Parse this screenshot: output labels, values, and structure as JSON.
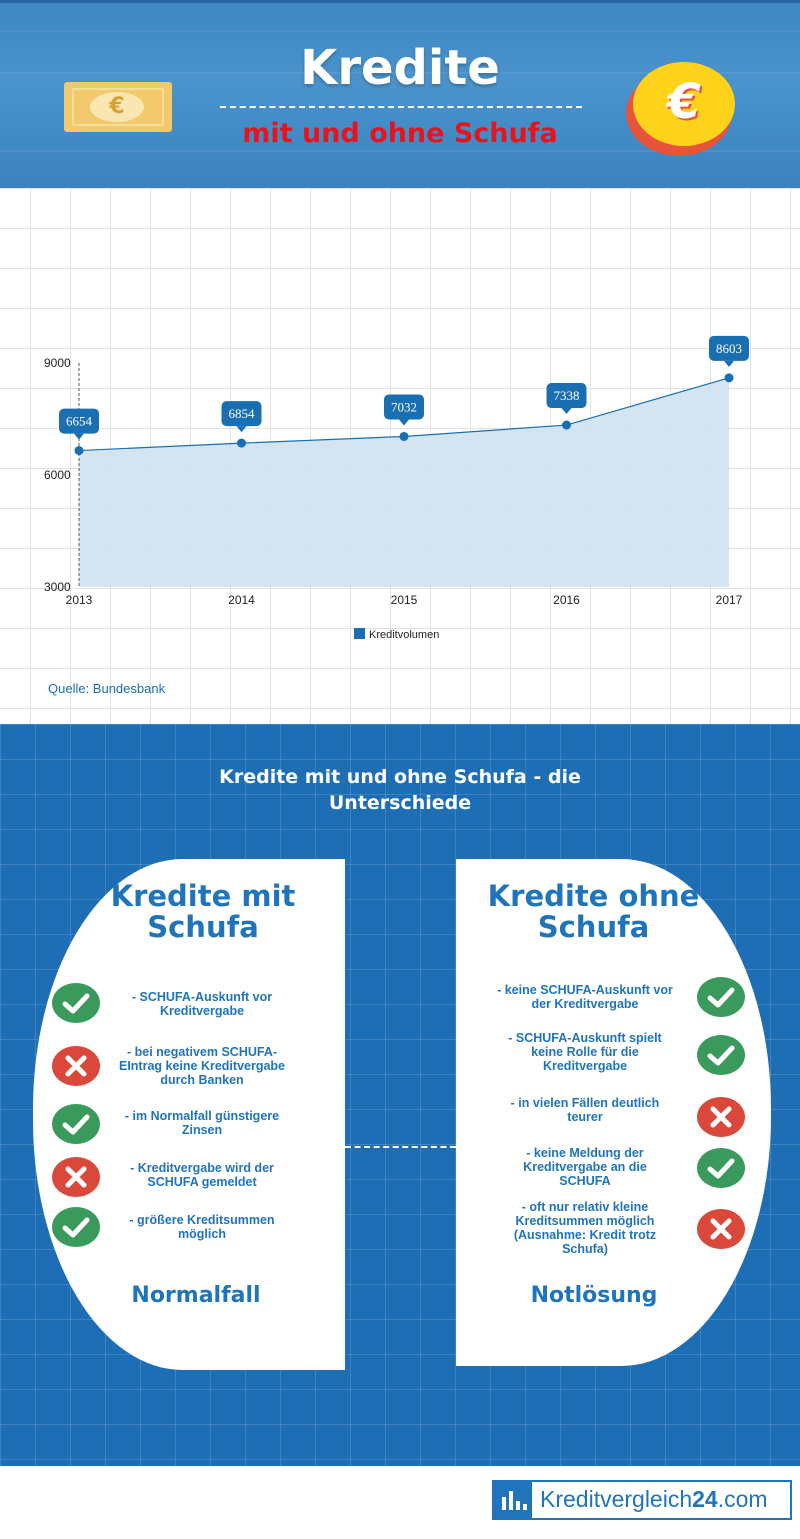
{
  "header": {
    "title": "Kredite",
    "subtitle": "mit und ohne Schufa",
    "euro_symbol": "€",
    "colors": {
      "background": "#3d87c4",
      "subtitle": "#e8141b",
      "coin": "#ffd21c",
      "note": "#f2c96d"
    }
  },
  "chart_data": {
    "type": "area",
    "x": [
      "2013",
      "2014",
      "2015",
      "2016",
      "2017"
    ],
    "series": [
      {
        "name": "Kreditvolumen",
        "values": [
          6654,
          6854,
          7032,
          7338,
          8603
        ]
      }
    ],
    "data_labels": [
      "6654",
      "6854",
      "7032",
      "7338",
      "8603"
    ],
    "y_ticks": [
      "9000",
      "6000",
      "3000"
    ],
    "ylim": [
      3000,
      9000
    ],
    "grid": true,
    "legend": "bottom",
    "colors": {
      "line": "#1a6fb3",
      "fill": "#cfe2f0",
      "label_bg": "#1a6fb3"
    }
  },
  "chart_source": "Quelle: Bundesbank",
  "comparison": {
    "title": "Kredite mit und ohne Schufa - die Unterschiede",
    "left": {
      "title_line1": "Kredite mit",
      "title_line2": "Schufa",
      "items": [
        {
          "text": "- SCHUFA-Auskunft vor Kreditvergabe",
          "status": "check"
        },
        {
          "text": "- bei negativem SCHUFA-EIntrag keine Kreditvergabe durch Banken",
          "status": "cross"
        },
        {
          "text": "- im Normalfall günstigere Zinsen",
          "status": "check"
        },
        {
          "text": "- Kreditvergabe wird der SCHUFA gemeldet",
          "status": "cross"
        },
        {
          "text": "- größere Kreditsummen möglich",
          "status": "check"
        }
      ],
      "footer": "Normalfall"
    },
    "right": {
      "title_line1": "Kredite ohne",
      "title_line2": "Schufa",
      "items": [
        {
          "text": "- keine SCHUFA-Auskunft vor der Kreditvergabe",
          "status": "check"
        },
        {
          "text": "- SCHUFA-Auskunft spielt keine Rolle für die Kreditvergabe",
          "status": "check"
        },
        {
          "text": "- in vielen Fällen deutlich teurer",
          "status": "cross"
        },
        {
          "text": "- keine Meldung der Kreditvergabe an die SCHUFA",
          "status": "check"
        },
        {
          "text": "- oft nur relativ kleine Kreditsummen möglich (Ausnahme: Kredit trotz Schufa)",
          "status": "cross"
        }
      ],
      "footer": "Notlösung"
    },
    "colors": {
      "check": "#3a9a5b",
      "cross": "#d9483b",
      "text": "#1f74bc",
      "background": "#1e6eb5"
    }
  },
  "footer": {
    "logo_text_main": "Kreditvergleich",
    "logo_text_bold": "24",
    "logo_text_suffix": ".com"
  }
}
